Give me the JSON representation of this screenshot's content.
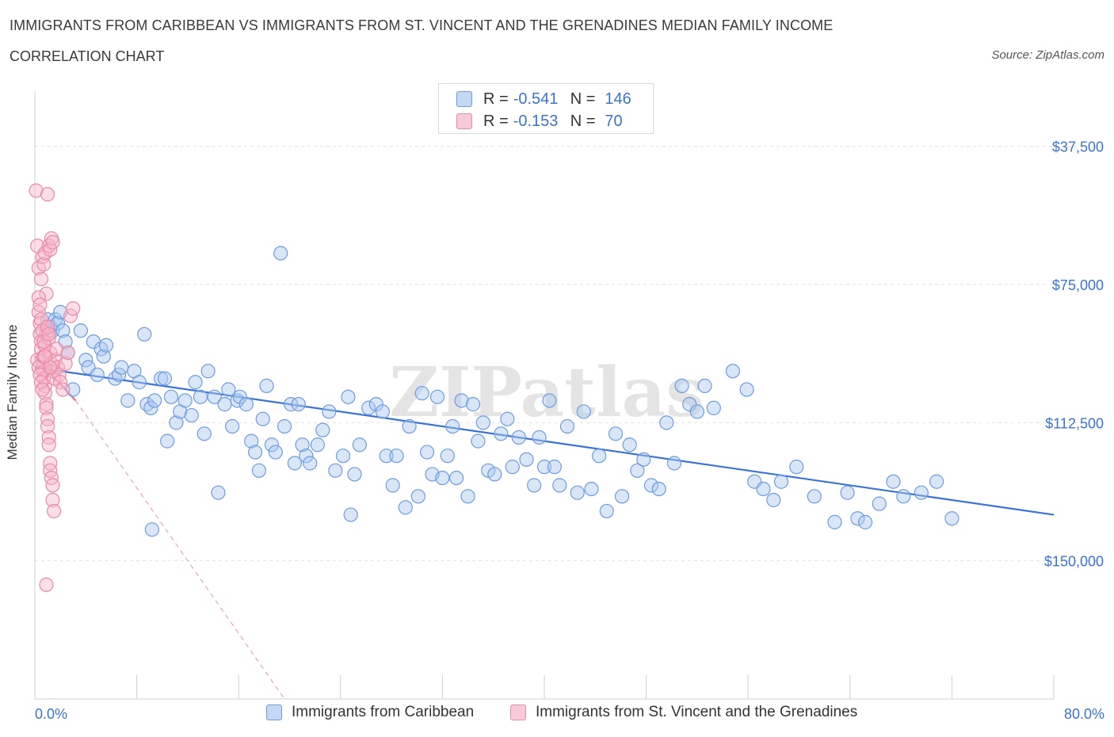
{
  "title": "IMMIGRANTS FROM CARIBBEAN VS IMMIGRANTS FROM ST. VINCENT AND THE GRENADINES MEDIAN FAMILY INCOME",
  "subtitle": "CORRELATION CHART",
  "source": "Source: ZipAtlas.com",
  "watermark": "ZIPatlas",
  "legend_top": [
    {
      "r_label": "R =",
      "r_value": "-0.541",
      "n_label": "N =",
      "n_value": "146"
    },
    {
      "r_label": "R =",
      "r_value": "-0.153",
      "n_label": "N =",
      "n_value": "70"
    }
  ],
  "x_axis": {
    "min_label": "0.0%",
    "max_label": "80.0%"
  },
  "y_axis_label": "Median Family Income",
  "y_ticks": [
    "$150,000",
    "$112,500",
    "$75,000",
    "$37,500"
  ],
  "bottom_legend": [
    "Immigrants from Caribbean",
    "Immigrants from St. Vincent and the Grenadines"
  ],
  "colors": {
    "blue": "#3a73d6",
    "blue_fill": "#a9c8f0",
    "pink": "#e8668f",
    "pink_fill": "#f6b6c9",
    "grid": "#e3e3e3"
  },
  "chart_data": {
    "type": "scatter",
    "title": "IMMIGRANTS FROM CARIBBEAN VS IMMIGRANTS FROM ST. VINCENT AND THE GRENADINES MEDIAN FAMILY INCOME",
    "xlabel": "",
    "ylabel": "Median Family Income",
    "xlim": [
      0,
      80
    ],
    "ylim": [
      0,
      165000
    ],
    "y_ticks": [
      37500,
      75000,
      112500,
      150000
    ],
    "grid": true,
    "legend_position": "top-center",
    "series": [
      {
        "name": "Immigrants from Caribbean",
        "color": "#3a73d6",
        "r": -0.541,
        "n": 146,
        "trend": {
          "x": [
            0,
            80
          ],
          "y": [
            90000,
            50000
          ]
        },
        "points": [
          [
            1.0,
            103000
          ],
          [
            1.2,
            101000
          ],
          [
            1.4,
            100000
          ],
          [
            1.6,
            103000
          ],
          [
            1.8,
            102000
          ],
          [
            2.0,
            105000
          ],
          [
            2.2,
            100000
          ],
          [
            2.4,
            97000
          ],
          [
            2.6,
            94000
          ],
          [
            3.0,
            84000
          ],
          [
            3.6,
            100000
          ],
          [
            4.0,
            92000
          ],
          [
            4.2,
            90000
          ],
          [
            4.6,
            97000
          ],
          [
            4.9,
            88000
          ],
          [
            5.2,
            95000
          ],
          [
            5.4,
            93000
          ],
          [
            5.6,
            96000
          ],
          [
            6.3,
            87000
          ],
          [
            6.6,
            88000
          ],
          [
            6.8,
            90000
          ],
          [
            7.3,
            81000
          ],
          [
            7.8,
            89000
          ],
          [
            8.2,
            86000
          ],
          [
            8.6,
            99000
          ],
          [
            8.8,
            80000
          ],
          [
            9.1,
            79000
          ],
          [
            9.4,
            81000
          ],
          [
            9.9,
            87000
          ],
          [
            10.2,
            87000
          ],
          [
            10.4,
            70000
          ],
          [
            10.7,
            82000
          ],
          [
            11.1,
            75000
          ],
          [
            11.4,
            78000
          ],
          [
            11.8,
            81000
          ],
          [
            12.3,
            77000
          ],
          [
            12.6,
            86000
          ],
          [
            13.0,
            82000
          ],
          [
            13.3,
            72000
          ],
          [
            13.6,
            89000
          ],
          [
            14.1,
            82000
          ],
          [
            14.4,
            56000
          ],
          [
            14.9,
            80000
          ],
          [
            15.2,
            84000
          ],
          [
            15.5,
            74000
          ],
          [
            15.9,
            81000
          ],
          [
            16.1,
            82000
          ],
          [
            16.6,
            80000
          ],
          [
            17.0,
            70000
          ],
          [
            17.3,
            67000
          ],
          [
            17.6,
            62000
          ],
          [
            17.9,
            76000
          ],
          [
            18.2,
            85000
          ],
          [
            18.6,
            69000
          ],
          [
            18.9,
            67000
          ],
          [
            19.3,
            121000
          ],
          [
            19.6,
            74000
          ],
          [
            20.1,
            80000
          ],
          [
            20.4,
            64000
          ],
          [
            20.7,
            80000
          ],
          [
            21.0,
            69000
          ],
          [
            21.3,
            66000
          ],
          [
            21.6,
            64000
          ],
          [
            22.2,
            69000
          ],
          [
            22.6,
            73000
          ],
          [
            23.1,
            78000
          ],
          [
            23.6,
            62000
          ],
          [
            24.2,
            66000
          ],
          [
            24.6,
            82000
          ],
          [
            25.1,
            61000
          ],
          [
            25.5,
            69000
          ],
          [
            26.2,
            79000
          ],
          [
            26.8,
            80000
          ],
          [
            27.3,
            78000
          ],
          [
            27.6,
            66000
          ],
          [
            28.1,
            58000
          ],
          [
            28.4,
            66000
          ],
          [
            29.1,
            52000
          ],
          [
            29.4,
            74000
          ],
          [
            30.1,
            55000
          ],
          [
            30.4,
            83000
          ],
          [
            30.8,
            67000
          ],
          [
            31.2,
            61000
          ],
          [
            31.6,
            82000
          ],
          [
            32.0,
            60000
          ],
          [
            32.4,
            66000
          ],
          [
            32.8,
            74000
          ],
          [
            33.1,
            60000
          ],
          [
            33.5,
            81000
          ],
          [
            34.0,
            55000
          ],
          [
            34.4,
            80000
          ],
          [
            34.8,
            70000
          ],
          [
            35.2,
            75000
          ],
          [
            35.6,
            62000
          ],
          [
            36.1,
            61000
          ],
          [
            36.6,
            72000
          ],
          [
            37.1,
            76000
          ],
          [
            37.5,
            63000
          ],
          [
            38.0,
            71000
          ],
          [
            38.6,
            65000
          ],
          [
            39.2,
            58000
          ],
          [
            39.6,
            71000
          ],
          [
            40.0,
            63000
          ],
          [
            40.4,
            81000
          ],
          [
            40.8,
            63000
          ],
          [
            41.2,
            58000
          ],
          [
            41.8,
            74000
          ],
          [
            42.6,
            56000
          ],
          [
            43.1,
            78000
          ],
          [
            43.7,
            57000
          ],
          [
            44.3,
            66000
          ],
          [
            44.9,
            51000
          ],
          [
            45.6,
            72000
          ],
          [
            46.1,
            55000
          ],
          [
            46.7,
            69000
          ],
          [
            47.3,
            62000
          ],
          [
            47.8,
            65000
          ],
          [
            48.4,
            58000
          ],
          [
            49.0,
            57000
          ],
          [
            49.6,
            75000
          ],
          [
            50.2,
            64000
          ],
          [
            50.8,
            85000
          ],
          [
            51.4,
            80000
          ],
          [
            52.0,
            78000
          ],
          [
            52.6,
            85000
          ],
          [
            53.3,
            79000
          ],
          [
            54.8,
            89000
          ],
          [
            55.9,
            84000
          ],
          [
            56.5,
            59000
          ],
          [
            57.2,
            57000
          ],
          [
            58.0,
            54000
          ],
          [
            58.6,
            59000
          ],
          [
            59.8,
            63000
          ],
          [
            61.2,
            55000
          ],
          [
            62.8,
            48000
          ],
          [
            63.8,
            56000
          ],
          [
            64.6,
            49000
          ],
          [
            65.2,
            48000
          ],
          [
            66.3,
            53000
          ],
          [
            67.4,
            59000
          ],
          [
            68.2,
            55000
          ],
          [
            69.6,
            56000
          ],
          [
            70.8,
            59000
          ],
          [
            72.0,
            49000
          ],
          [
            9.2,
            46000
          ],
          [
            24.8,
            50000
          ]
        ]
      },
      {
        "name": "Immigrants from St. Vincent and the Grenadines",
        "color": "#e8668f",
        "r": -0.153,
        "n": 70,
        "trend": {
          "x": [
            0,
            3.2
          ],
          "y": [
            93000,
            81000
          ],
          "dashed_extension": {
            "x": [
              3.2,
              19.6
            ],
            "y": [
              81000,
              0
            ]
          }
        },
        "points": [
          [
            0.1,
            138000
          ],
          [
            0.2,
            123000
          ],
          [
            0.3,
            117000
          ],
          [
            0.3,
            105000
          ],
          [
            0.4,
            102000
          ],
          [
            0.4,
            99000
          ],
          [
            0.5,
            97000
          ],
          [
            0.5,
            95000
          ],
          [
            0.6,
            92000
          ],
          [
            0.6,
            90000
          ],
          [
            0.7,
            89000
          ],
          [
            0.7,
            87000
          ],
          [
            0.8,
            85000
          ],
          [
            0.8,
            83000
          ],
          [
            0.9,
            80000
          ],
          [
            0.9,
            79000
          ],
          [
            1.0,
            76000
          ],
          [
            1.0,
            74000
          ],
          [
            1.1,
            71000
          ],
          [
            1.1,
            69000
          ],
          [
            1.2,
            64000
          ],
          [
            1.2,
            62000
          ],
          [
            1.3,
            60000
          ],
          [
            1.4,
            58000
          ],
          [
            1.4,
            54000
          ],
          [
            1.5,
            51000
          ],
          [
            0.2,
            92000
          ],
          [
            0.3,
            90000
          ],
          [
            0.4,
            88000
          ],
          [
            0.5,
            86000
          ],
          [
            0.6,
            84000
          ],
          [
            0.7,
            93000
          ],
          [
            0.8,
            96000
          ],
          [
            0.9,
            99000
          ],
          [
            1.0,
            101000
          ],
          [
            1.1,
            98000
          ],
          [
            1.2,
            94000
          ],
          [
            1.3,
            91000
          ],
          [
            1.4,
            89000
          ],
          [
            1.5,
            87000
          ],
          [
            1.6,
            92000
          ],
          [
            1.7,
            95000
          ],
          [
            1.8,
            90000
          ],
          [
            1.9,
            88000
          ],
          [
            2.0,
            86000
          ],
          [
            2.2,
            84000
          ],
          [
            2.4,
            91000
          ],
          [
            2.6,
            94000
          ],
          [
            2.8,
            104000
          ],
          [
            3.0,
            106000
          ],
          [
            0.5,
            114000
          ],
          [
            0.6,
            120000
          ],
          [
            0.7,
            118000
          ],
          [
            0.8,
            121000
          ],
          [
            0.9,
            110000
          ],
          [
            1.0,
            137000
          ],
          [
            1.1,
            123000
          ],
          [
            1.2,
            122000
          ],
          [
            1.3,
            125000
          ],
          [
            1.4,
            124000
          ],
          [
            0.3,
            109000
          ],
          [
            0.4,
            107000
          ],
          [
            0.5,
            103000
          ],
          [
            0.6,
            100000
          ],
          [
            0.7,
            97000
          ],
          [
            0.8,
            93000
          ],
          [
            0.9,
            31000
          ],
          [
            1.0,
            101000
          ],
          [
            1.1,
            99000
          ],
          [
            1.2,
            90000
          ]
        ]
      }
    ]
  }
}
